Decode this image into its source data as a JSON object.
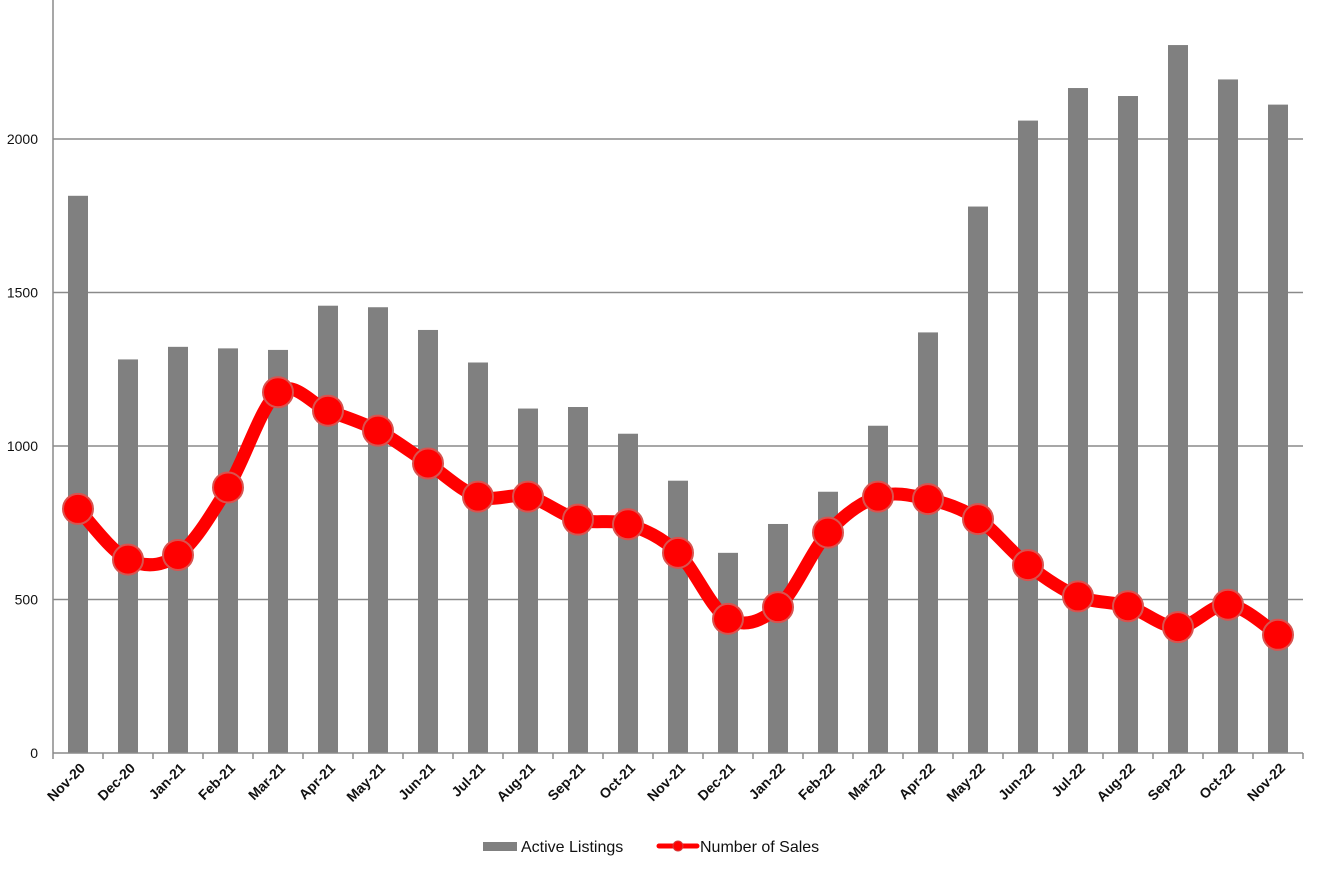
{
  "chart_data": {
    "type": "bar",
    "categories": [
      "Nov-20",
      "Dec-20",
      "Jan-21",
      "Feb-21",
      "Mar-21",
      "Apr-21",
      "May-21",
      "Jun-21",
      "Jul-21",
      "Aug-21",
      "Sep-21",
      "Oct-21",
      "Nov-21",
      "Dec-21",
      "Jan-22",
      "Feb-22",
      "Mar-22",
      "Apr-22",
      "May-22",
      "Jun-22",
      "Jul-22",
      "Aug-22",
      "Sep-22",
      "Oct-22",
      "Nov-22"
    ],
    "series": [
      {
        "name": "Active Listings",
        "type": "bar",
        "color": "#808080",
        "values": [
          1815,
          1282,
          1323,
          1318,
          1313,
          1457,
          1452,
          1378,
          1272,
          1122,
          1127,
          1040,
          887,
          652,
          746,
          851,
          1066,
          1370,
          1780,
          2060,
          2166,
          2140,
          2306,
          2194,
          2112
        ]
      },
      {
        "name": "Number of Sales",
        "type": "line",
        "color": "#ff0000",
        "values": [
          795,
          630,
          645,
          865,
          1175,
          1115,
          1050,
          943,
          835,
          835,
          760,
          745,
          652,
          437,
          475,
          718,
          835,
          827,
          762,
          612,
          510,
          478,
          410,
          483,
          385
        ]
      }
    ],
    "y_ticks": [
      "0",
      "500",
      "1000",
      "1500",
      "2000"
    ],
    "ylim": [
      0,
      2450
    ],
    "grid": true,
    "legend": "bottom-center"
  }
}
